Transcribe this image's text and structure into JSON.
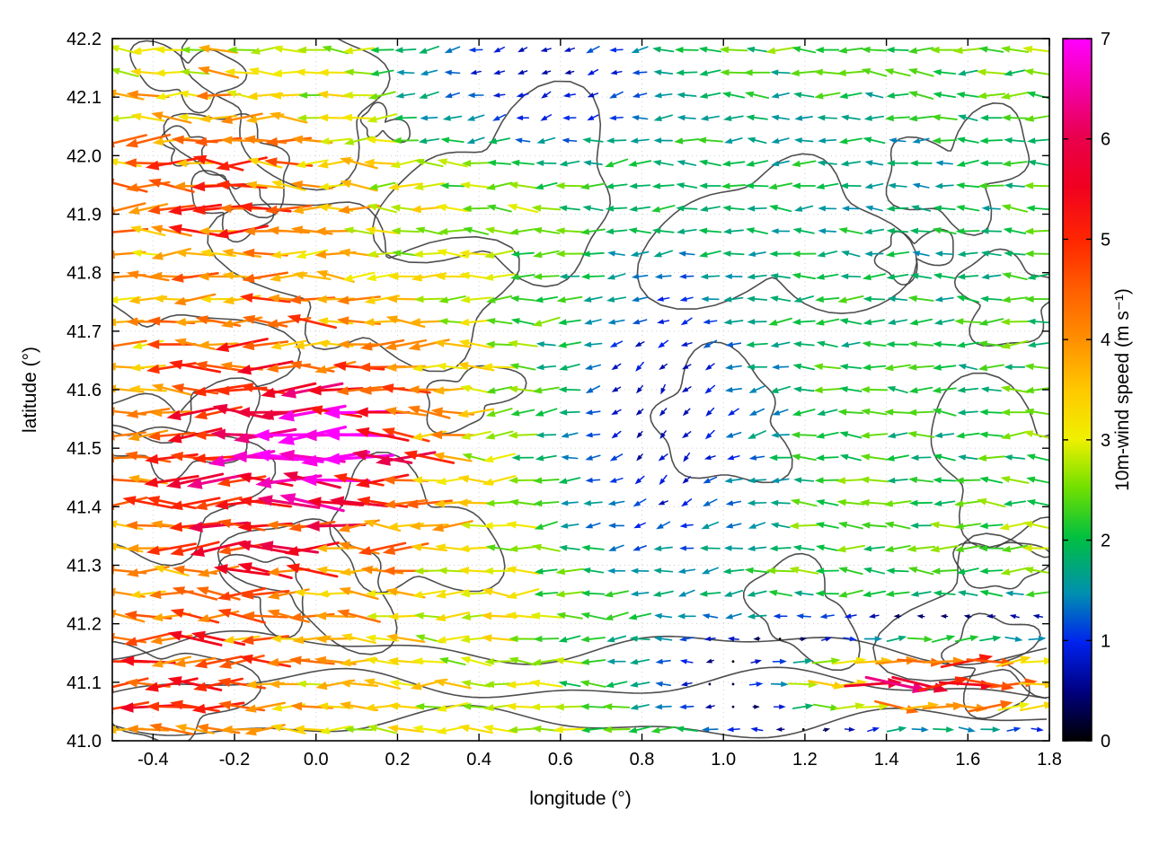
{
  "figure": {
    "background": "#ffffff"
  },
  "chart_data": {
    "type": "quiver",
    "title": "",
    "xlabel": "longitude (°)",
    "ylabel": "latitude (°)",
    "xlim": [
      -0.5,
      1.8
    ],
    "ylim": [
      41.0,
      42.2
    ],
    "grid": true,
    "xtick_values": [
      -0.4,
      -0.2,
      0.0,
      0.2,
      0.4,
      0.6,
      0.8,
      1.0,
      1.2,
      1.4,
      1.6,
      1.8
    ],
    "xtick_labels": [
      "-0.4",
      "-0.2",
      "0.0",
      "0.2",
      "0.4",
      "0.6",
      "0.8",
      "1.0",
      "1.2",
      "1.4",
      "1.6",
      "1.8"
    ],
    "ytick_values": [
      41.0,
      41.1,
      41.2,
      41.3,
      41.4,
      41.5,
      41.6,
      41.7,
      41.8,
      41.9,
      42.0,
      42.1,
      42.2
    ],
    "ytick_labels": [
      "41.0",
      "41.1",
      "41.2",
      "41.3",
      "41.4",
      "41.5",
      "41.6",
      "41.7",
      "41.8",
      "41.9",
      "42.0",
      "42.1",
      "42.2"
    ],
    "colorbar": {
      "label": "10m-wind speed (m s⁻¹)",
      "min": 0,
      "max": 7,
      "tick_values": [
        0,
        1,
        2,
        3,
        4,
        5,
        6,
        7
      ],
      "tick_labels": [
        "0",
        "1",
        "2",
        "3",
        "4",
        "5",
        "6",
        "7"
      ],
      "palette_stops": [
        [
          0.0,
          "#000000"
        ],
        [
          0.07,
          "#000080"
        ],
        [
          0.14,
          "#0022ee"
        ],
        [
          0.21,
          "#0090b0"
        ],
        [
          0.29,
          "#00c040"
        ],
        [
          0.36,
          "#70e000"
        ],
        [
          0.43,
          "#f0f000"
        ],
        [
          0.5,
          "#ffc800"
        ],
        [
          0.57,
          "#ff9000"
        ],
        [
          0.64,
          "#ff6000"
        ],
        [
          0.71,
          "#ff2800"
        ],
        [
          0.79,
          "#f00020"
        ],
        [
          0.86,
          "#e8004d"
        ],
        [
          0.93,
          "#f300a8"
        ],
        [
          1.0,
          "#ff00ff"
        ]
      ]
    },
    "wind_field": {
      "description": "10m wind vectors on regular lon-lat grid; dominant easterly (westward-pointing) flow, calm pocket in centre and top, strong jet on west side, strong eastward jet along bottom-right",
      "nx": 40,
      "ny": 31,
      "seed": 1234567,
      "base": {
        "u": -2.9,
        "v": 0.05
      },
      "jitter": {
        "angle_deg": 15,
        "speed": 0.22
      },
      "speed_max": 7,
      "features": [
        {
          "name": "calm-centre",
          "cx": 0.85,
          "cy": 41.55,
          "sx": 0.3,
          "sy": 0.32,
          "damp": 0.88,
          "du": 0.0,
          "dv": -0.55
        },
        {
          "name": "calm-top",
          "cx": 0.55,
          "cy": 42.13,
          "sx": 0.38,
          "sy": 0.14,
          "damp": 0.8,
          "du": 0.0,
          "dv": -0.35
        },
        {
          "name": "calm-top-right",
          "cx": 1.35,
          "cy": 42.0,
          "sx": 0.45,
          "sy": 0.25,
          "damp": 0.35,
          "du": 0.0,
          "dv": 0.0
        },
        {
          "name": "strong-west-left",
          "cx": -0.12,
          "cy": 41.47,
          "sx": 0.38,
          "sy": 0.26,
          "damp": 0.0,
          "du": -2.6,
          "dv": 0.0
        },
        {
          "name": "magenta-pocket-left",
          "cx": 0.08,
          "cy": 41.5,
          "sx": 0.16,
          "sy": 0.1,
          "damp": 0.0,
          "du": -2.2,
          "dv": 0.0
        },
        {
          "name": "east-jet-bottom-right",
          "cx": 1.55,
          "cy": 41.1,
          "sx": 0.5,
          "sy": 0.1,
          "damp": 0.0,
          "du": 9.0,
          "dv": 0.0
        },
        {
          "name": "strong-upper-left",
          "cx": -0.25,
          "cy": 41.95,
          "sx": 0.3,
          "sy": 0.18,
          "damp": 0.0,
          "du": -1.6,
          "dv": 0.0
        },
        {
          "name": "bottom-left-strong",
          "cx": -0.35,
          "cy": 41.08,
          "sx": 0.28,
          "sy": 0.14,
          "damp": 0.0,
          "du": -1.8,
          "dv": 0.0
        },
        {
          "name": "moderate-right",
          "cx": 1.55,
          "cy": 41.6,
          "sx": 0.35,
          "sy": 0.4,
          "damp": 0.3,
          "du": 0.0,
          "dv": 0.0
        }
      ]
    },
    "contours": {
      "description": "terrain / coastline contour lines overlaid in dark grey",
      "seed": 424242,
      "blob_count": 26,
      "open_line_count": 3,
      "stroke": "#3c3c3c",
      "stroke_width": 1.6
    }
  }
}
